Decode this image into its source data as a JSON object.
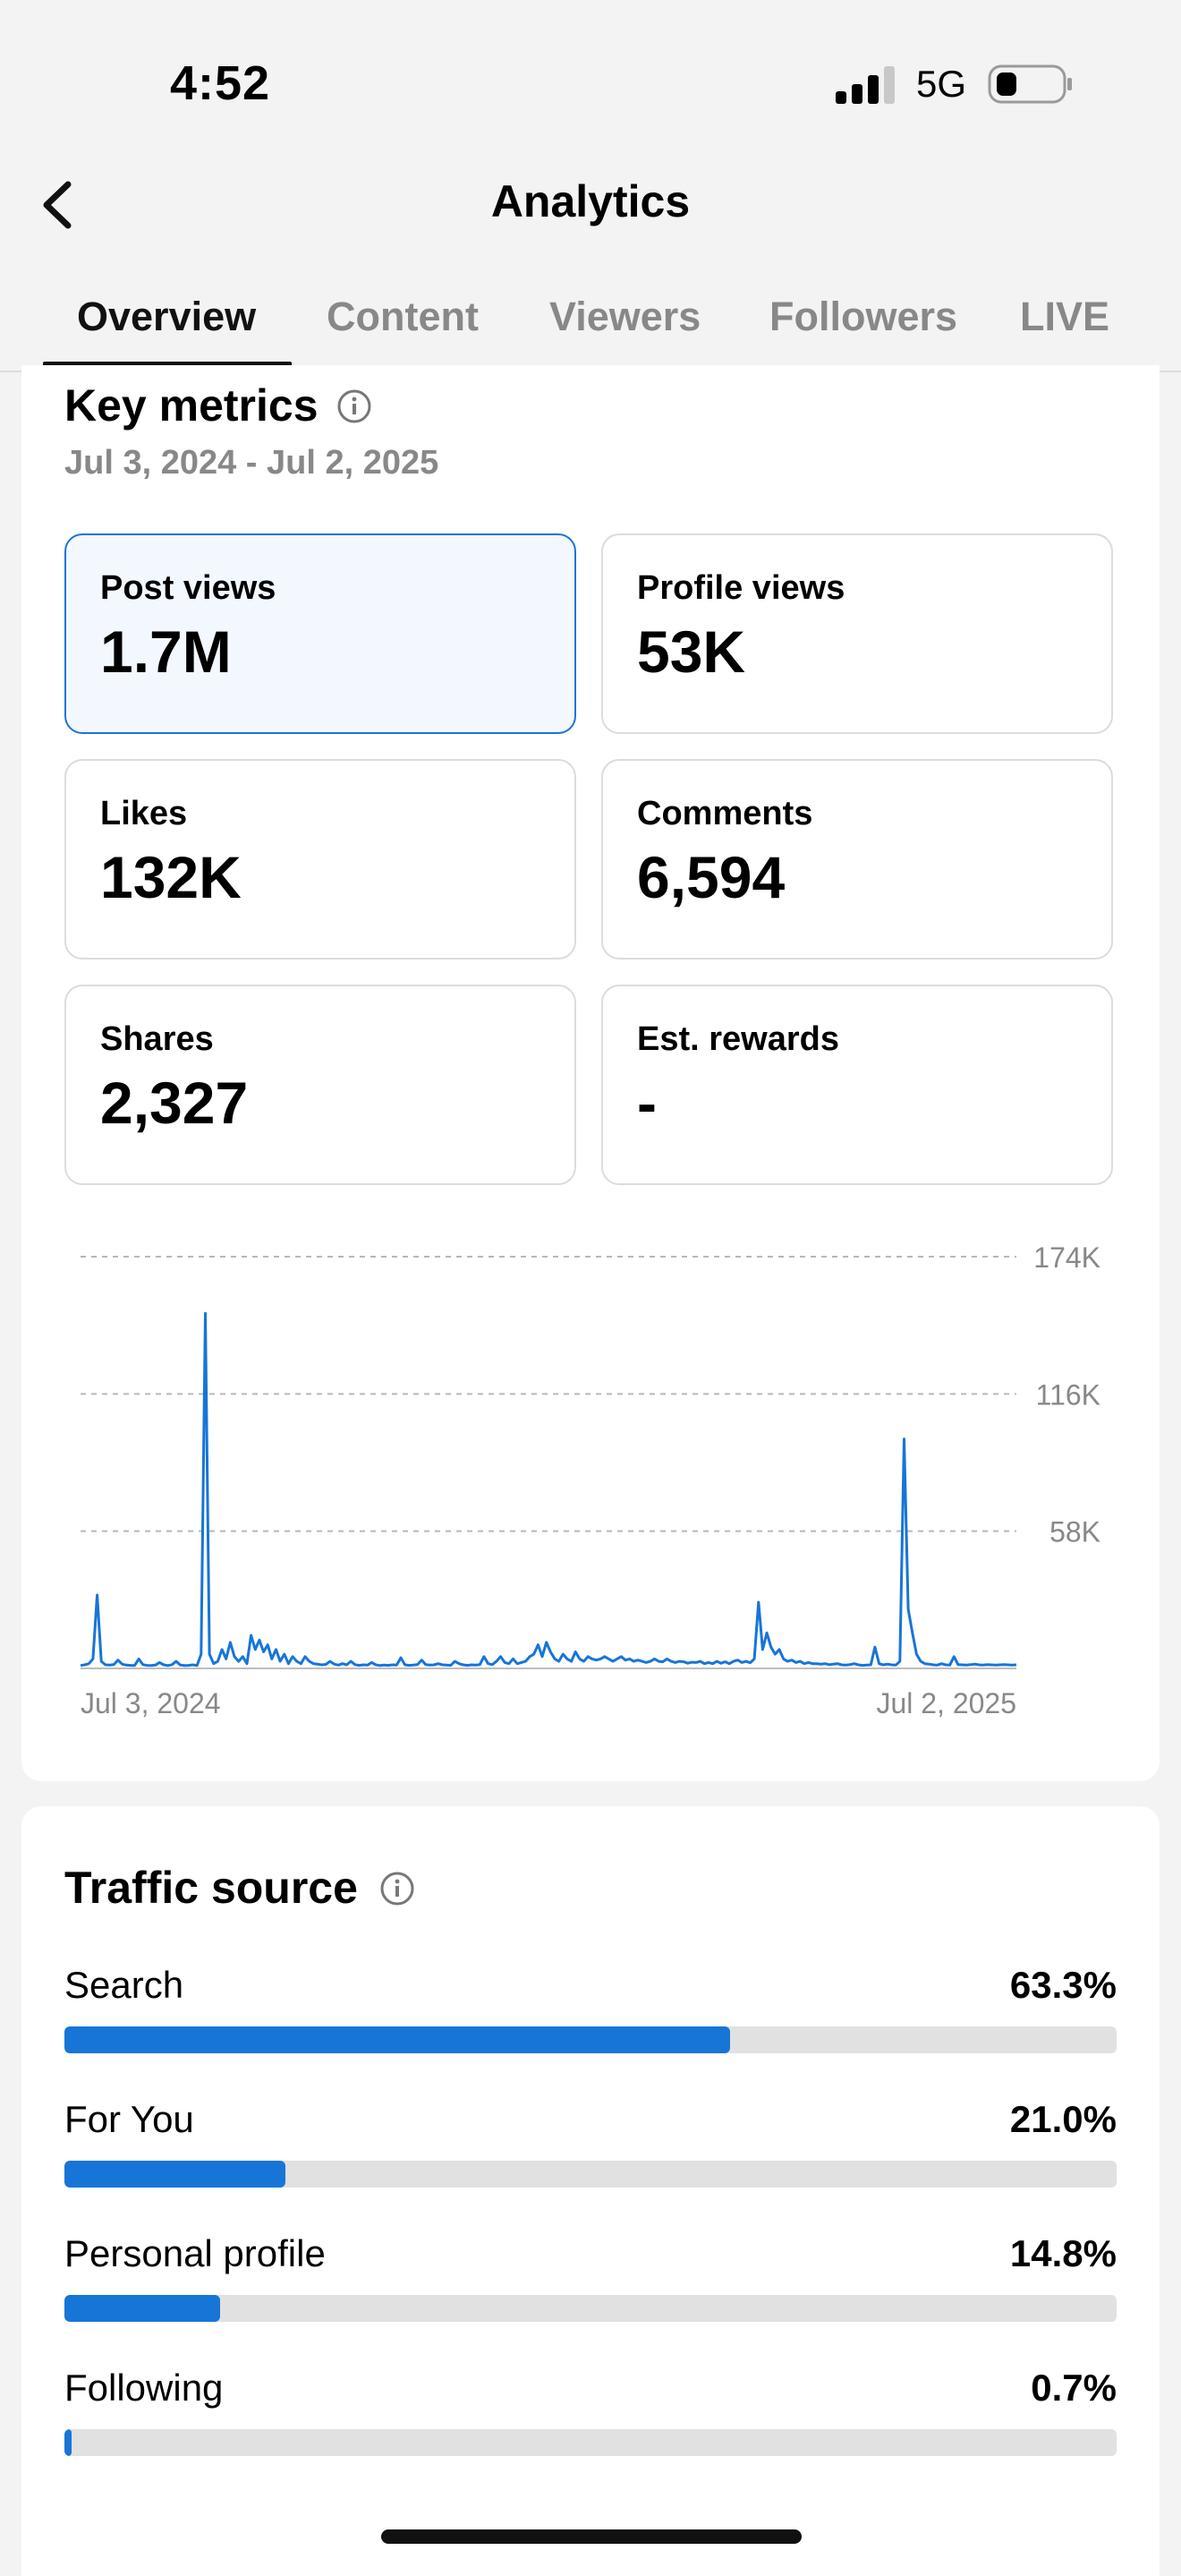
{
  "status_bar": {
    "time": "4:52",
    "network": "5G"
  },
  "header": {
    "title": "Analytics"
  },
  "tabs": [
    {
      "label": "Overview",
      "active": true
    },
    {
      "label": "Content"
    },
    {
      "label": "Viewers"
    },
    {
      "label": "Followers"
    },
    {
      "label": "LIVE"
    }
  ],
  "key_metrics": {
    "title": "Key metrics",
    "date_range": "Jul 3, 2024 - Jul 2, 2025",
    "metrics": [
      {
        "label": "Post views",
        "value": "1.7M",
        "selected": true
      },
      {
        "label": "Profile views",
        "value": "53K"
      },
      {
        "label": "Likes",
        "value": "132K"
      },
      {
        "label": "Comments",
        "value": "6,594"
      },
      {
        "label": "Shares",
        "value": "2,327"
      },
      {
        "label": "Est. rewards",
        "value": "-"
      }
    ]
  },
  "chart_data": {
    "type": "line",
    "series_color": "#1775d8",
    "x_start_label": "Jul 3, 2024",
    "x_end_label": "Jul 2, 2025",
    "y_tick_labels": [
      "174K",
      "116K",
      "58K"
    ],
    "y_ticks": [
      174000,
      116000,
      58000
    ],
    "ylim": [
      0,
      174000
    ],
    "grid": true,
    "values": [
      1200,
      1500,
      2000,
      4000,
      31000,
      3000,
      1500,
      1400,
      1600,
      3500,
      1800,
      1400,
      1300,
      1200,
      4000,
      1600,
      1300,
      1200,
      1400,
      2500,
      1500,
      1200,
      1600,
      3000,
      1400,
      1200,
      1300,
      1500,
      1200,
      6000,
      150000,
      6000,
      2000,
      3000,
      8000,
      4000,
      11000,
      5000,
      3000,
      5000,
      2000,
      14000,
      8000,
      12000,
      7000,
      10000,
      4000,
      8000,
      3000,
      6000,
      2000,
      5000,
      3000,
      2000,
      5000,
      3000,
      2000,
      1800,
      1500,
      1700,
      3000,
      1800,
      1400,
      2000,
      1500,
      3000,
      1600,
      1300,
      1500,
      1400,
      2500,
      1500,
      1200,
      1400,
      1300,
      1500,
      1400,
      4500,
      1500,
      1300,
      1400,
      1600,
      3500,
      1600,
      1400,
      1500,
      2000,
      1500,
      1400,
      1300,
      3000,
      2000,
      1500,
      1300,
      1500,
      1400,
      1600,
      5000,
      2000,
      1600,
      3000,
      5000,
      2500,
      2000,
      4000,
      2000,
      2500,
      3000,
      5000,
      6000,
      10000,
      5000,
      11000,
      7000,
      4000,
      3000,
      6000,
      4000,
      3000,
      7000,
      4000,
      3000,
      5000,
      4000,
      3500,
      4000,
      5000,
      4000,
      3000,
      4000,
      5000,
      3500,
      4000,
      3000,
      3500,
      3000,
      2500,
      3000,
      4000,
      3000,
      2800,
      4000,
      3000,
      2500,
      3000,
      2800,
      2200,
      2600,
      2500,
      3000,
      2000,
      2500,
      2000,
      3000,
      2200,
      2800,
      2000,
      3000,
      3500,
      2500,
      3000,
      2400,
      4000,
      28000,
      8000,
      15000,
      9000,
      6000,
      8000,
      4000,
      3000,
      3500,
      2500,
      3000,
      2000,
      2500,
      2000,
      2000,
      1800,
      2000,
      1600,
      1800,
      2000,
      1500,
      1400,
      1600,
      2000,
      1500,
      1300,
      1400,
      1500,
      9000,
      2000,
      1500,
      1800,
      1500,
      1400,
      3000,
      97000,
      25000,
      15000,
      6000,
      3000,
      2000,
      1800,
      1500,
      1400,
      2000,
      1500,
      1400,
      5000,
      1600,
      1500,
      1400,
      1600,
      1800,
      1500,
      1400,
      1600,
      1500,
      1400,
      1500,
      1600,
      1500,
      1400,
      1500
    ]
  },
  "traffic_source": {
    "title": "Traffic source",
    "rows": [
      {
        "label": "Search",
        "pct_label": "63.3%",
        "pct": 63.3
      },
      {
        "label": "For You",
        "pct_label": "21.0%",
        "pct": 21.0
      },
      {
        "label": "Personal profile",
        "pct_label": "14.8%",
        "pct": 14.8
      },
      {
        "label": "Following",
        "pct_label": "0.7%",
        "pct": 0.7
      }
    ]
  }
}
